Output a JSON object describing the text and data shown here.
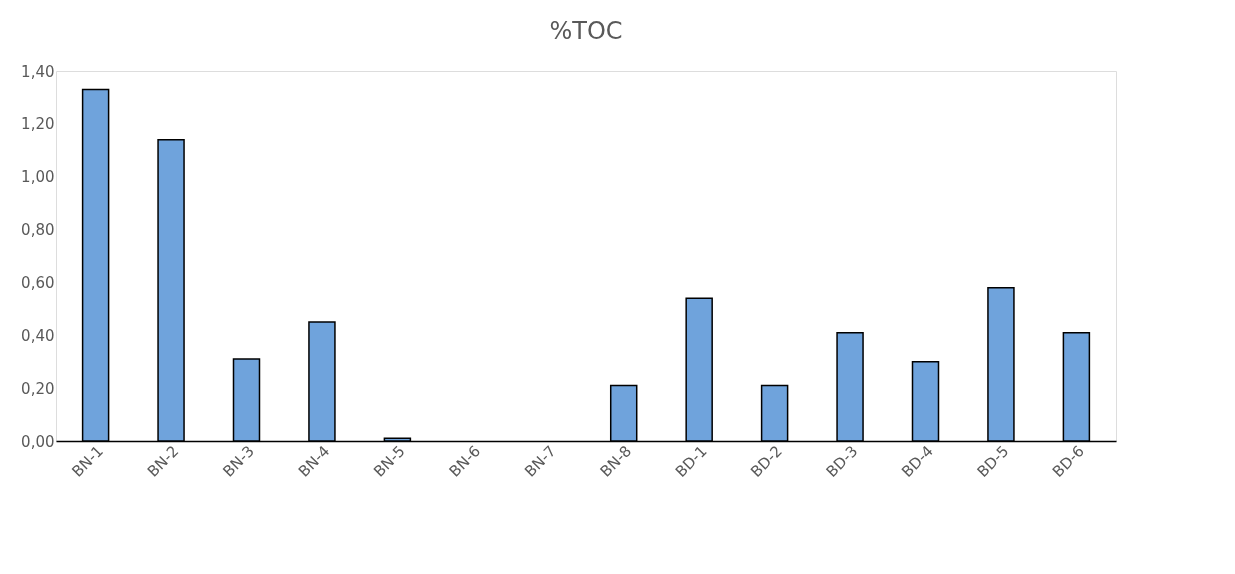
{
  "chart_data": {
    "type": "bar",
    "title": "%TOC",
    "categories": [
      "BN-1",
      "BN-2",
      "BN-3",
      "BN-4",
      "BN-5",
      "BN-6",
      "BN-7",
      "BN-8",
      "BD-1",
      "BD-2",
      "BD-3",
      "BD-4",
      "BD-5",
      "BD-6"
    ],
    "values": [
      1.33,
      1.14,
      0.31,
      0.45,
      0.01,
      null,
      null,
      0.21,
      0.54,
      0.21,
      0.41,
      0.3,
      0.58,
      0.41
    ],
    "color": "#6fa3dc",
    "ylim": [
      0,
      1.4
    ],
    "yticks": [
      {
        "value": 0,
        "label": "0,00"
      },
      {
        "value": 0.2,
        "label": "0,20"
      },
      {
        "value": 0.4,
        "label": "0,40"
      },
      {
        "value": 0.6,
        "label": "0,60"
      },
      {
        "value": 0.8,
        "label": "0,80"
      },
      {
        "value": 1.0,
        "label": "1,00"
      },
      {
        "value": 1.2,
        "label": "1,20"
      },
      {
        "value": 1.4,
        "label": "1,40"
      }
    ],
    "grid": false
  }
}
